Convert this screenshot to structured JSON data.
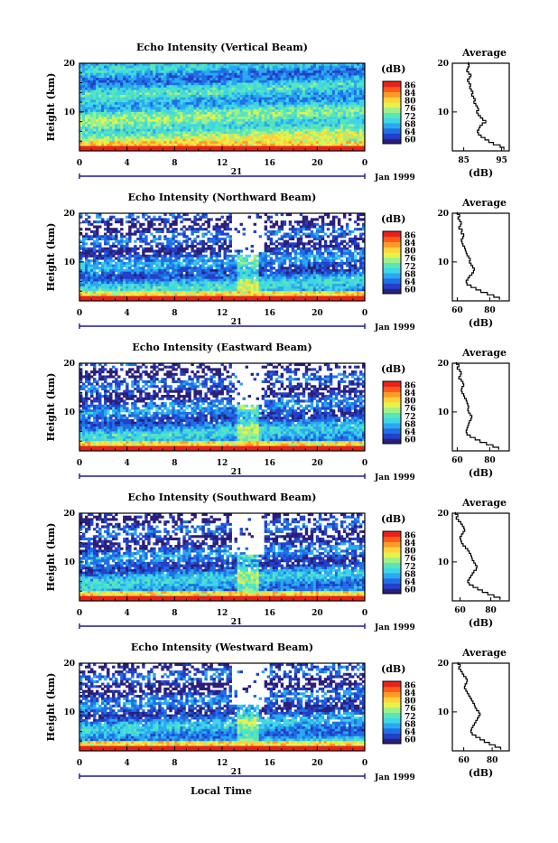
{
  "footer": {
    "xlabel": "Local Time"
  },
  "colors": {
    "colormap": [
      "#2b1f7a",
      "#2340c8",
      "#1f6fe6",
      "#2aa8f0",
      "#3fd6e6",
      "#58e6b8",
      "#9ff08a",
      "#e6f24a",
      "#ffd23a",
      "#ff9a28",
      "#ff5a1e",
      "#e8221a"
    ],
    "missing": "#ffffff",
    "axis": "#000000",
    "dateline": "#1a1aa0"
  },
  "chart_data": [
    {
      "type": "heatmap",
      "title": "Echo Intensity (Vertical Beam)",
      "ylabel": "Height (km)",
      "x_ticks": [
        "0",
        "4",
        "8",
        "12",
        "16",
        "20",
        "0"
      ],
      "xlim": [
        0,
        24
      ],
      "ylim": [
        2,
        20
      ],
      "y_ticks": [
        "20",
        "10"
      ],
      "date_day": "21",
      "date_month": "Jan 1999",
      "colorbar": {
        "label": "(dB)",
        "ticks": [
          "86",
          "84",
          "80",
          "76",
          "72",
          "68",
          "64",
          "60"
        ],
        "range": [
          60,
          88
        ]
      },
      "profile": {
        "title": "Average",
        "xlabel": "(dB)",
        "x_ticks": [
          "85",
          "95"
        ],
        "xlim": [
          82,
          97
        ],
        "y_ticks": [
          "20",
          "10"
        ],
        "height": [
          20,
          19.5,
          19,
          18.5,
          18,
          17.5,
          17,
          16.5,
          16,
          15.5,
          15,
          14.5,
          14,
          13.5,
          13,
          12.5,
          12,
          11.5,
          11,
          10.5,
          10,
          9.5,
          9,
          8.5,
          8,
          7.5,
          7,
          6.5,
          6,
          5.5,
          5,
          4.5,
          4,
          3.5,
          3,
          2.5
        ],
        "values": [
          86.2,
          86.4,
          86.1,
          85.8,
          86.3,
          86.9,
          86.5,
          86.0,
          86.4,
          86.8,
          86.6,
          87.0,
          87.4,
          87.1,
          87.6,
          88.0,
          87.7,
          88.2,
          88.6,
          88.9,
          88.4,
          88.8,
          89.4,
          90.0,
          90.8,
          89.9,
          89.3,
          89.0,
          88.6,
          88.9,
          89.6,
          90.6,
          91.6,
          92.8,
          94.6,
          95.6
        ]
      }
    },
    {
      "type": "heatmap",
      "title": "Echo Intensity (Northward Beam)",
      "ylabel": "Height (km)",
      "x_ticks": [
        "0",
        "4",
        "8",
        "12",
        "16",
        "20",
        "0"
      ],
      "xlim": [
        0,
        24
      ],
      "ylim": [
        2,
        20
      ],
      "y_ticks": [
        "20",
        "10"
      ],
      "date_day": "21",
      "date_month": "Jan 1999",
      "colorbar": {
        "label": "(dB)",
        "ticks": [
          "86",
          "84",
          "80",
          "76",
          "72",
          "68",
          "64",
          "60"
        ],
        "range": [
          60,
          88
        ]
      },
      "profile": {
        "title": "Average",
        "xlabel": "(dB)",
        "x_ticks": [
          "60",
          "80"
        ],
        "xlim": [
          57,
          92
        ],
        "y_ticks": [
          "20",
          "10"
        ],
        "height": [
          20,
          19.5,
          19,
          18.5,
          18,
          17.5,
          17,
          16.5,
          16,
          15.5,
          15,
          14.5,
          14,
          13.5,
          13,
          12.5,
          12,
          11.5,
          11,
          10.5,
          10,
          9.5,
          9,
          8.5,
          8,
          7.5,
          7,
          6.5,
          6,
          5.5,
          5,
          4.5,
          4,
          3.5,
          3,
          2.5
        ],
        "values": [
          60.0,
          61.5,
          60.5,
          61.5,
          62.5,
          62.0,
          61.0,
          63.0,
          62.5,
          64.0,
          63.5,
          62.5,
          63.0,
          63.5,
          64.5,
          65.0,
          65.5,
          66.0,
          67.0,
          68.0,
          67.5,
          68.5,
          69.5,
          70.5,
          70.0,
          69.0,
          67.5,
          66.5,
          65.5,
          66.0,
          68.5,
          71.5,
          74.5,
          78.5,
          82.5,
          86.0
        ]
      }
    },
    {
      "type": "heatmap",
      "title": "Echo Intensity (Eastward Beam)",
      "ylabel": "Height (km)",
      "x_ticks": [
        "0",
        "4",
        "8",
        "12",
        "16",
        "20",
        "0"
      ],
      "xlim": [
        0,
        24
      ],
      "ylim": [
        2,
        20
      ],
      "y_ticks": [
        "20",
        "10"
      ],
      "date_day": "21",
      "date_month": "Jan 1999",
      "colorbar": {
        "label": "(dB)",
        "ticks": [
          "86",
          "84",
          "80",
          "76",
          "72",
          "68",
          "64",
          "60"
        ],
        "range": [
          60,
          88
        ]
      },
      "profile": {
        "title": "Average",
        "xlabel": "(dB)",
        "x_ticks": [
          "60",
          "80"
        ],
        "xlim": [
          57,
          92
        ],
        "y_ticks": [
          "20",
          "10"
        ],
        "height": [
          20,
          19.5,
          19,
          18.5,
          18,
          17.5,
          17,
          16.5,
          16,
          15.5,
          15,
          14.5,
          14,
          13.5,
          13,
          12.5,
          12,
          11.5,
          11,
          10.5,
          10,
          9.5,
          9,
          8.5,
          8,
          7.5,
          7,
          6.5,
          6,
          5.5,
          5,
          4.5,
          4,
          3.5,
          3,
          2.5
        ],
        "values": [
          59.5,
          61.0,
          60.0,
          61.5,
          62.5,
          62.0,
          61.0,
          62.5,
          63.5,
          64.0,
          63.0,
          62.5,
          63.0,
          64.0,
          64.5,
          65.5,
          66.0,
          66.5,
          67.0,
          66.5,
          67.0,
          68.0,
          69.0,
          68.5,
          67.5,
          67.0,
          66.5,
          66.0,
          65.5,
          66.0,
          68.0,
          71.0,
          74.0,
          78.0,
          82.0,
          85.5
        ]
      }
    },
    {
      "type": "heatmap",
      "title": "Echo Intensity (Southward Beam)",
      "ylabel": "Height (km)",
      "x_ticks": [
        "0",
        "4",
        "8",
        "12",
        "16",
        "20",
        "0"
      ],
      "xlim": [
        0,
        24
      ],
      "ylim": [
        2,
        20
      ],
      "y_ticks": [
        "20",
        "10"
      ],
      "date_day": "21",
      "date_month": "Jan 1999",
      "colorbar": {
        "label": "(dB)",
        "ticks": [
          "86",
          "84",
          "80",
          "76",
          "72",
          "68",
          "64",
          "60"
        ],
        "range": [
          60,
          88
        ]
      },
      "profile": {
        "title": "Average",
        "xlabel": "(dB)",
        "x_ticks": [
          "60",
          "80"
        ],
        "xlim": [
          55,
          92
        ],
        "y_ticks": [
          "20",
          "10"
        ],
        "height": [
          20,
          19.5,
          19,
          18.5,
          18,
          17.5,
          17,
          16.5,
          16,
          15.5,
          15,
          14.5,
          14,
          13.5,
          13,
          12.5,
          12,
          11.5,
          11,
          10.5,
          10,
          9.5,
          9,
          8.5,
          8,
          7.5,
          7,
          6.5,
          6,
          5.5,
          5,
          4.5,
          4,
          3.5,
          3,
          2.5
        ],
        "values": [
          57.0,
          58.5,
          57.5,
          59.0,
          60.5,
          61.5,
          62.5,
          63.0,
          62.0,
          61.0,
          60.0,
          60.5,
          61.0,
          62.0,
          63.5,
          65.0,
          66.0,
          67.0,
          67.5,
          68.0,
          69.0,
          70.0,
          71.0,
          70.5,
          69.0,
          68.0,
          67.0,
          66.0,
          65.0,
          66.0,
          68.5,
          71.5,
          74.5,
          78.0,
          82.0,
          86.0
        ]
      }
    },
    {
      "type": "heatmap",
      "title": "Echo Intensity (Westward Beam)",
      "ylabel": "Height (km)",
      "x_ticks": [
        "0",
        "4",
        "8",
        "12",
        "16",
        "20",
        "0"
      ],
      "xlim": [
        0,
        24
      ],
      "ylim": [
        2,
        20
      ],
      "y_ticks": [
        "20",
        "10"
      ],
      "date_day": "21",
      "date_month": "Jan 1999",
      "colorbar": {
        "label": "(dB)",
        "ticks": [
          "86",
          "84",
          "80",
          "76",
          "72",
          "68",
          "64",
          "60"
        ],
        "range": [
          60,
          88
        ]
      },
      "profile": {
        "title": "Average",
        "xlabel": "(dB)",
        "x_ticks": [
          "60",
          "80"
        ],
        "xlim": [
          52,
          92
        ],
        "y_ticks": [
          "20",
          "10"
        ],
        "height": [
          20,
          19.5,
          19,
          18.5,
          18,
          17.5,
          17,
          16.5,
          16,
          15.5,
          15,
          14.5,
          14,
          13.5,
          13,
          12.5,
          12,
          11.5,
          11,
          10.5,
          10,
          9.5,
          9,
          8.5,
          8,
          7.5,
          7,
          6.5,
          6,
          5.5,
          5,
          4.5,
          4,
          3.5,
          3,
          2.5
        ],
        "values": [
          56.0,
          57.5,
          56.5,
          58.0,
          59.0,
          60.0,
          61.5,
          62.5,
          62.0,
          61.0,
          60.5,
          61.5,
          62.5,
          63.5,
          64.5,
          65.5,
          66.5,
          67.5,
          68.0,
          69.0,
          70.5,
          71.5,
          70.5,
          69.5,
          68.5,
          67.5,
          66.5,
          65.5,
          65.0,
          66.0,
          68.5,
          71.5,
          74.5,
          78.0,
          82.0,
          86.0
        ]
      }
    }
  ]
}
